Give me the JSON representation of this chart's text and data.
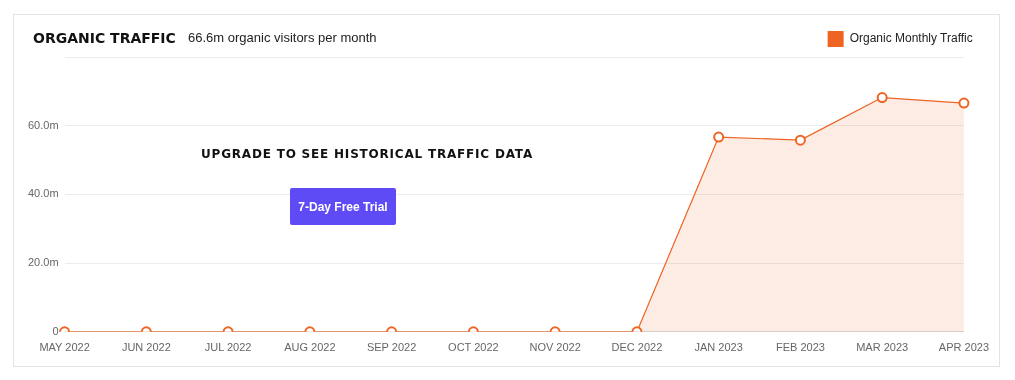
{
  "chart_data": {
    "type": "area",
    "title": "ORGANIC TRAFFIC",
    "subtitle": "66.6m organic visitors per month",
    "categories": [
      "MAY 2022",
      "JUN 2022",
      "JUL 2022",
      "AUG 2022",
      "SEP 2022",
      "OCT 2022",
      "NOV 2022",
      "DEC 2022",
      "JAN 2023",
      "FEB 2023",
      "MAR 2023",
      "APR 2023"
    ],
    "series": [
      {
        "name": "Organic Monthly Traffic",
        "color": "#ee6423",
        "values": [
          0,
          0,
          0,
          0,
          0,
          0,
          0,
          0,
          56.7,
          55.8,
          68.2,
          66.6
        ]
      }
    ],
    "ylim": [
      0,
      80
    ],
    "yticks": [
      0,
      {
        "value": 20,
        "label": "20.0m"
      },
      {
        "value": 40,
        "label": "40.0m"
      },
      {
        "value": 60,
        "label": "60.0m"
      },
      {
        "value": 80,
        "label": null
      }
    ],
    "grid": "y",
    "legend": "top right",
    "marker": "circle",
    "annotations": [
      "UPGRADE TO SEE HISTORICAL TRAFFIC DATA",
      "7-Day Free Trial"
    ]
  }
}
